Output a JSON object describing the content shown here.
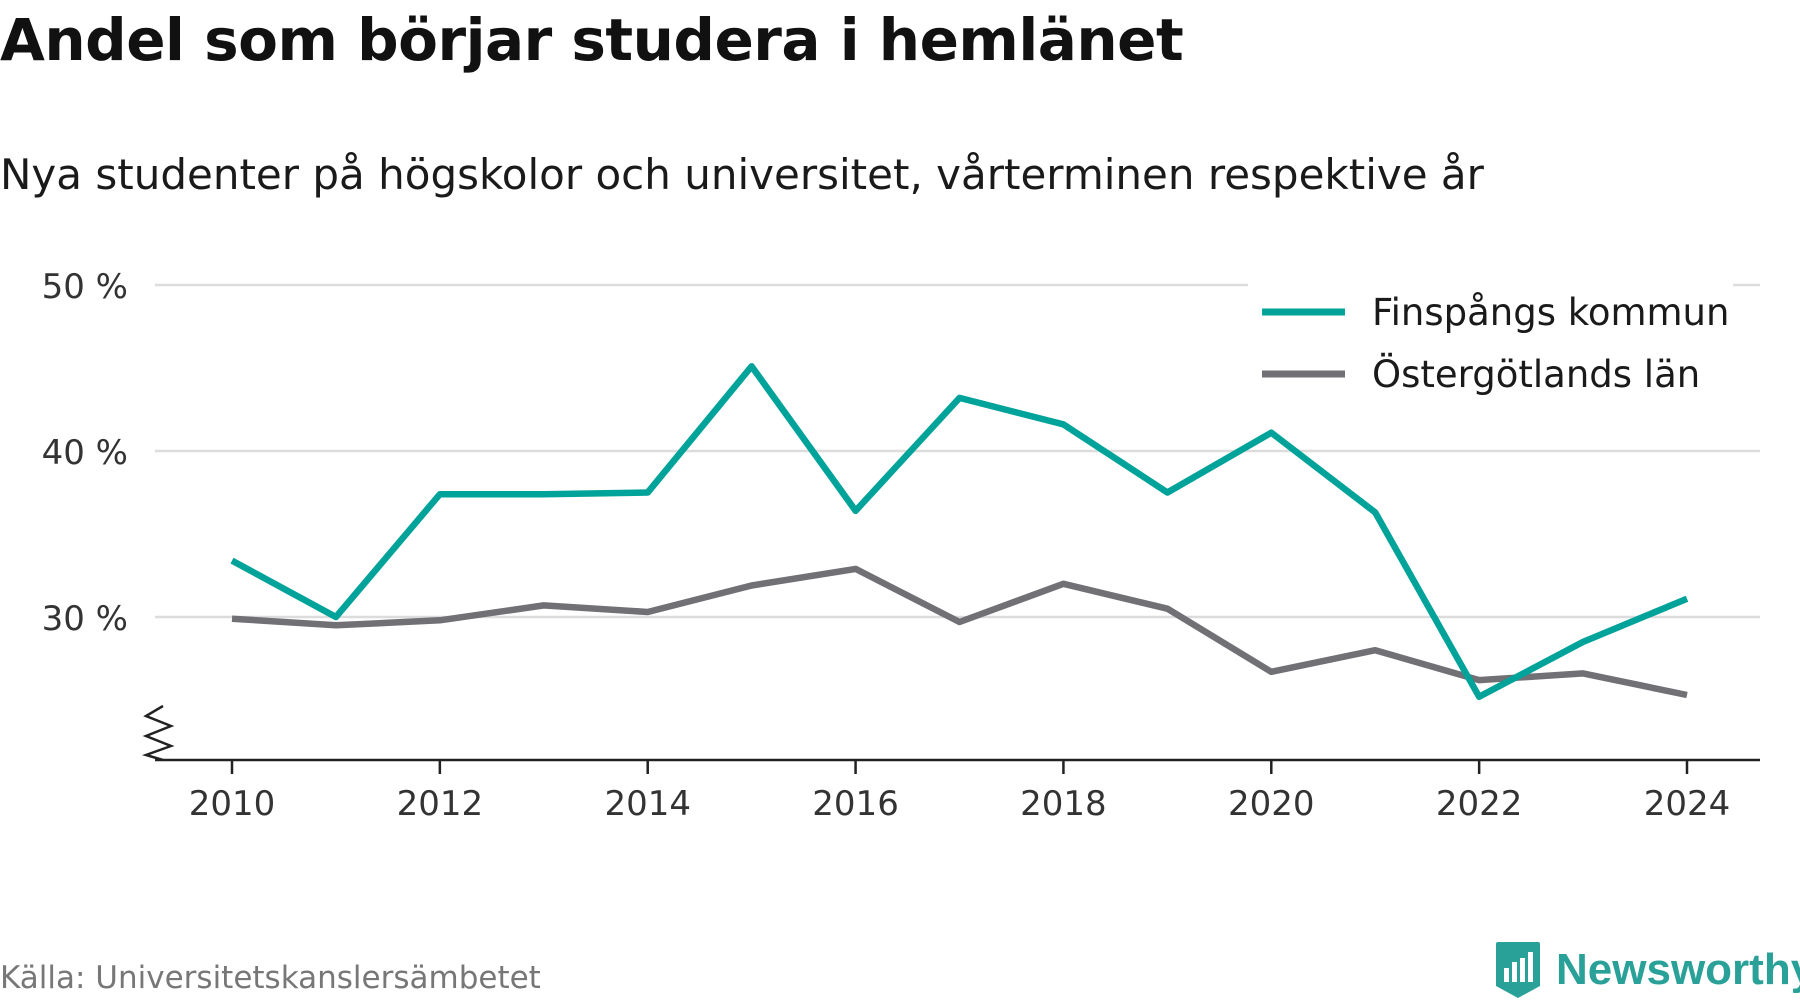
{
  "title": "Andel som börjar studera i hemlänet",
  "subtitle": "Nya studenter på högskolor och universitet, vårterminen respektive år",
  "source": "Källa: Universitetskanslersämbetet",
  "brand": {
    "name": "Newsworthy",
    "icon": "newsworthy-logo-icon",
    "color": "#2aa198"
  },
  "chart_data": {
    "type": "line",
    "title": "Andel som börjar studera i hemlänet",
    "subtitle": "Nya studenter på högskolor och universitet, vårterminen respektive år",
    "x": [
      2010,
      2011,
      2012,
      2013,
      2014,
      2015,
      2016,
      2017,
      2018,
      2019,
      2020,
      2021,
      2022,
      2023,
      2024
    ],
    "x_ticks": [
      2010,
      2012,
      2014,
      2016,
      2018,
      2020,
      2022,
      2024
    ],
    "y_ticks": [
      30,
      40,
      50
    ],
    "y_tick_labels": [
      "30 %",
      "40 %",
      "50 %"
    ],
    "ylim": [
      21.5,
      50
    ],
    "y_axis_break": true,
    "grid": "horizontal",
    "legend_position": "top-right",
    "series": [
      {
        "name": "Finspångs kommun",
        "color": "#00a39a",
        "values": [
          33.4,
          30.0,
          37.4,
          37.4,
          37.5,
          45.1,
          36.4,
          43.2,
          41.6,
          37.5,
          41.1,
          36.3,
          25.2,
          28.5,
          31.1
        ]
      },
      {
        "name": "Östergötlands län",
        "color": "#707075",
        "values": [
          29.9,
          29.5,
          29.8,
          30.7,
          30.3,
          31.9,
          32.9,
          29.7,
          32.0,
          30.5,
          26.7,
          28.0,
          26.2,
          26.6,
          25.3
        ]
      }
    ]
  }
}
